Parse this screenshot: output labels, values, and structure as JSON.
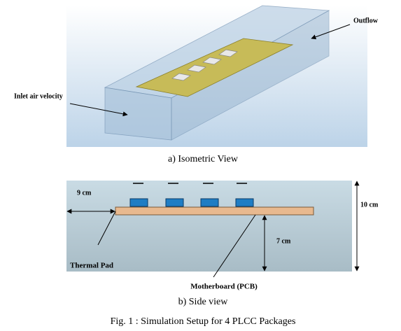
{
  "isometric": {
    "outflow": "Outflow",
    "inlet": "Inlet air velocity",
    "caption": "a) Isometric View"
  },
  "side": {
    "width_label": "9 cm",
    "height_label": "10 cm",
    "gap_label": "7 cm",
    "pad_label": "Thermal Pad",
    "board_label": "Motherboard (PCB)",
    "caption": "b) Side view"
  },
  "figure": {
    "caption": "Fig. 1 : Simulation Setup for 4 PLCC Packages"
  }
}
